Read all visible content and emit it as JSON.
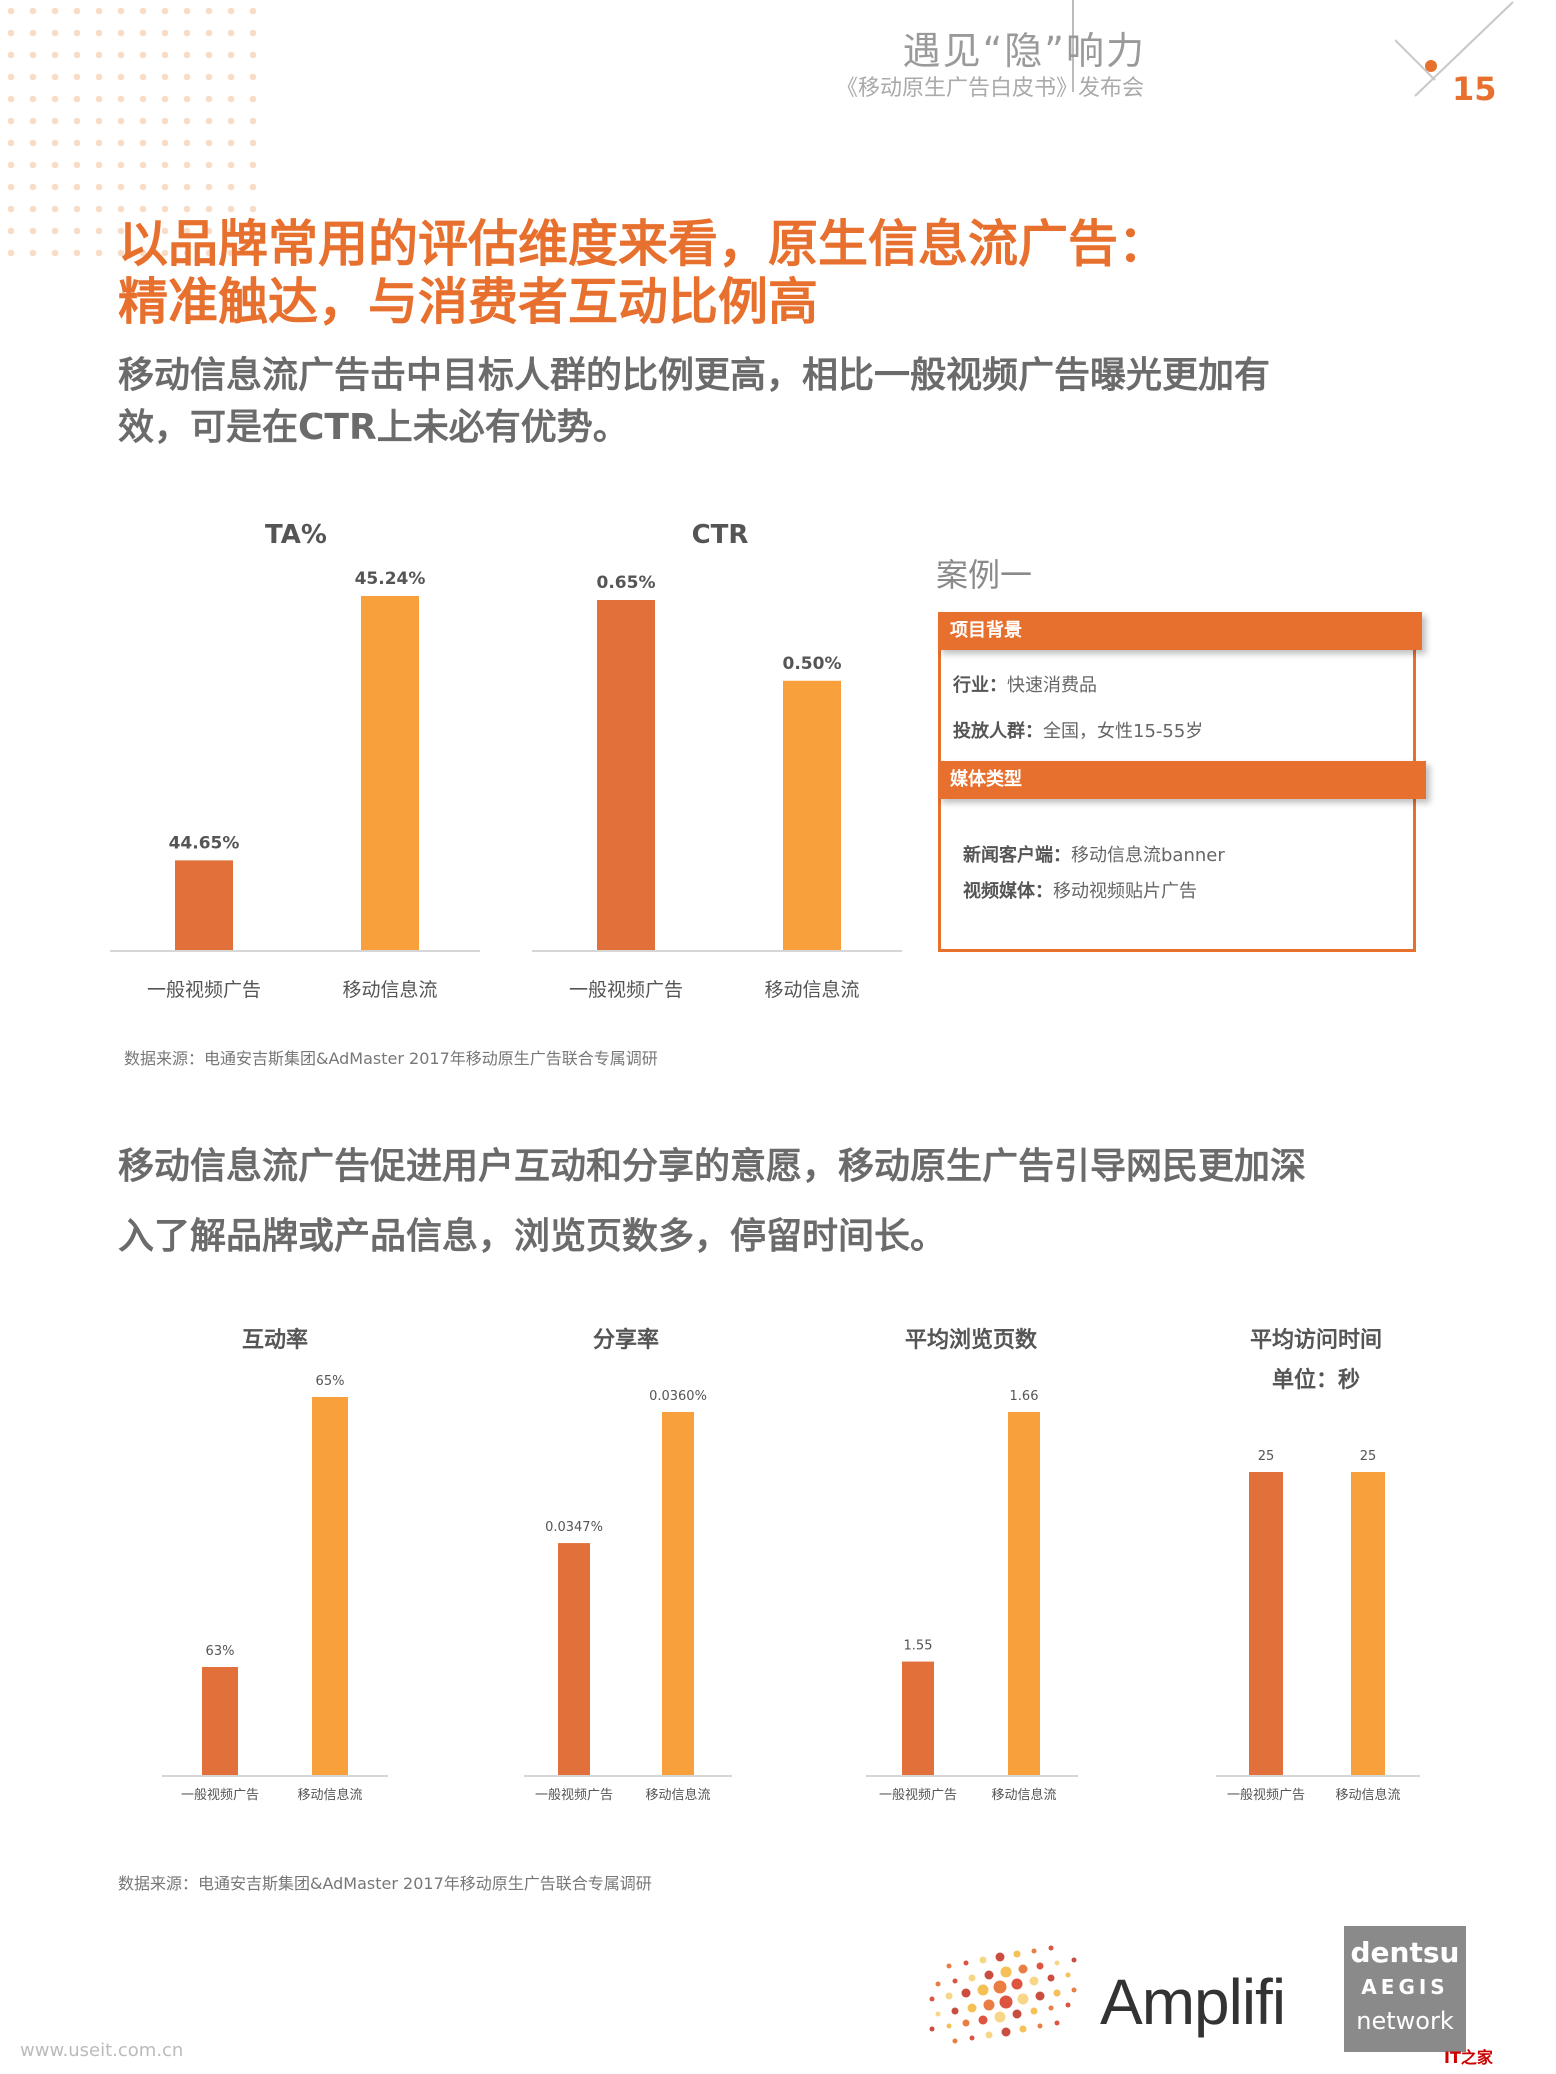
{
  "header": {
    "title": "遇见“隐”响力",
    "subtitle": "《移动原生广告白皮书》发布会",
    "page_number": "15"
  },
  "headline": {
    "line1": "以品牌常用的评估维度来看，原生信息流广告：",
    "line2": "精准触达，与消费者互动比例高"
  },
  "section1": {
    "text_line1": "移动信息流广告击中目标人群的比例更高，相比一般视频广告曝光更加有",
    "text_line2": "效，可是在CTR上未必有优势。",
    "source": "数据来源：电通安吉斯集团&AdMaster 2017年移动原生广告联合专属调研"
  },
  "case": {
    "title": "案例一",
    "bar1": "项目背景",
    "industry_label": "行业：",
    "industry_value": "快速消费品",
    "audience_label": "投放人群：",
    "audience_value": "全国，女性15-55岁",
    "bar2": "媒体类型",
    "news_label": "新闻客户端：",
    "news_value": "移动信息流banner",
    "video_label": "视频媒体：",
    "video_value": "移动视频贴片广告"
  },
  "section2": {
    "text_line1": "移动信息流广告促进用户互动和分享的意愿，移动原生广告引导网民更加深",
    "text_line2": "入了解品牌或产品信息，浏览页数多，停留时间长。",
    "source": "数据来源：电通安吉斯集团&AdMaster 2017年移动原生广告联合专属调研"
  },
  "colors": {
    "dark_orange": "#e2703a",
    "light_orange": "#f8a03c",
    "accent": "#e8702e"
  },
  "chart_data": [
    {
      "type": "bar",
      "title": "TA%",
      "categories": [
        "一般视频广告",
        "移动信息流"
      ],
      "values": [
        44.65,
        45.24
      ],
      "value_labels": [
        "44.65%",
        "45.24%"
      ]
    },
    {
      "type": "bar",
      "title": "CTR",
      "categories": [
        "一般视频广告",
        "移动信息流"
      ],
      "values": [
        0.65,
        0.5
      ],
      "value_labels": [
        "0.65%",
        "0.50%"
      ]
    },
    {
      "type": "bar",
      "title": "互动率",
      "categories": [
        "一般视频广告",
        "移动信息流"
      ],
      "values": [
        63,
        65
      ],
      "value_labels": [
        "63%",
        "65%"
      ]
    },
    {
      "type": "bar",
      "title": "分享率",
      "categories": [
        "一般视频广告",
        "移动信息流"
      ],
      "values": [
        0.0347,
        0.036
      ],
      "value_labels": [
        "0.0347%",
        "0.0360%"
      ]
    },
    {
      "type": "bar",
      "title": "平均浏览页数",
      "categories": [
        "一般视频广告",
        "移动信息流"
      ],
      "values": [
        1.55,
        1.66
      ],
      "value_labels": [
        "1.55",
        "1.66"
      ]
    },
    {
      "type": "bar",
      "title": "平均访问时间",
      "subtitle": "单位：秒",
      "categories": [
        "一般视频广告",
        "移动信息流"
      ],
      "values": [
        25,
        25
      ],
      "value_labels": [
        "25",
        "25"
      ]
    }
  ],
  "logos": {
    "amplifi": "Amplifi",
    "dentsu_line1": "dentsu",
    "dentsu_line2": "AEGIS",
    "dentsu_line3": "network"
  },
  "footer": {
    "watermark": "www.useit.com.cn",
    "it_home": "IT之家"
  }
}
